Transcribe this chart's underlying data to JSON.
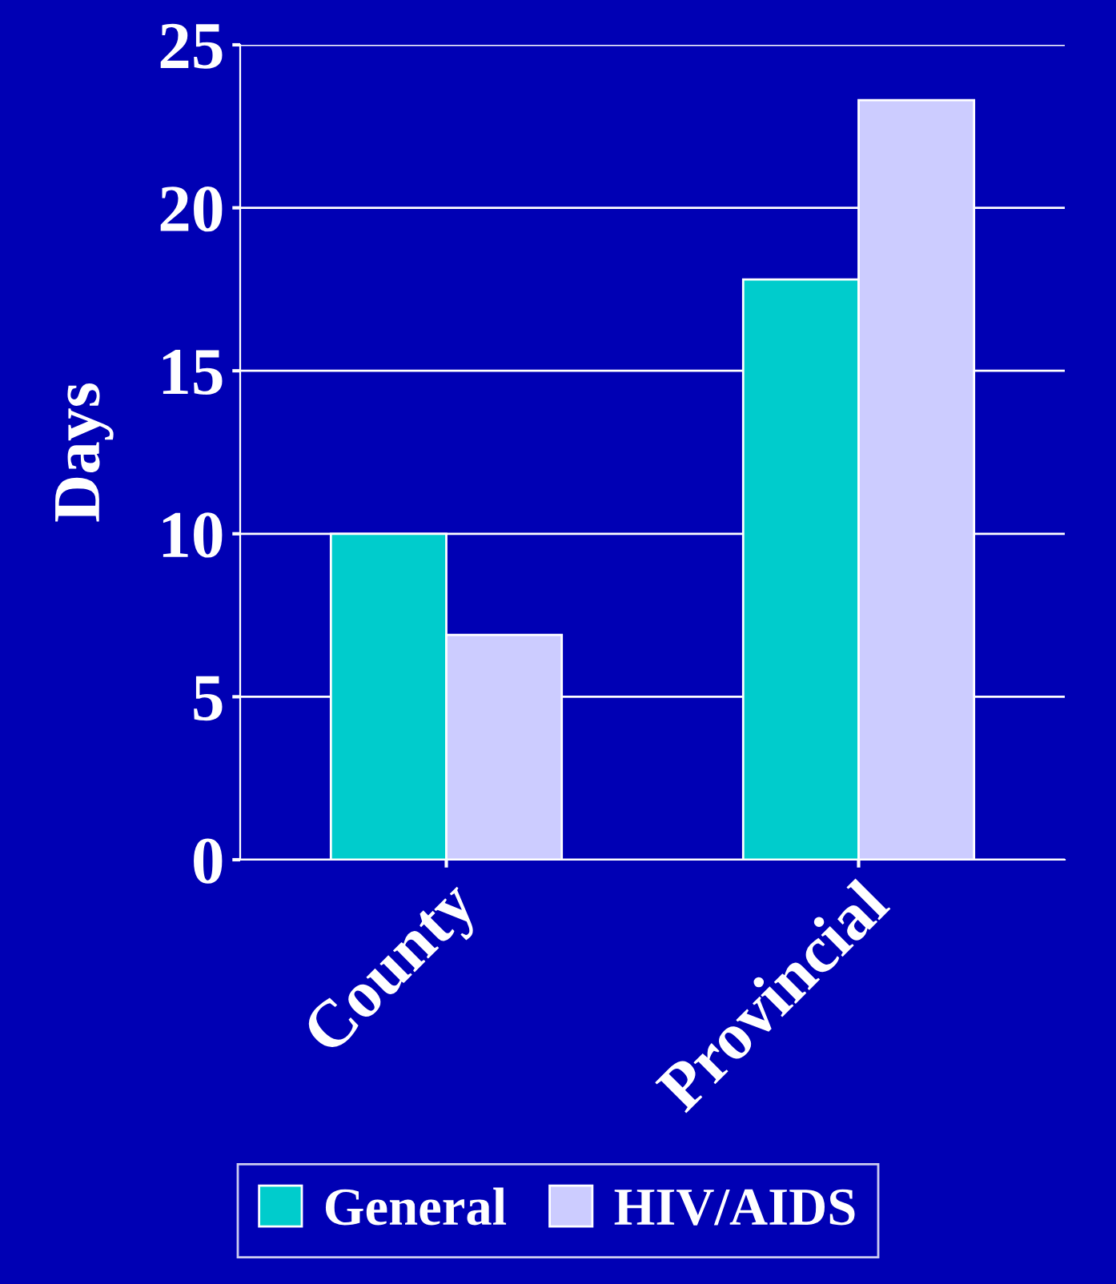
{
  "chart_data": {
    "type": "bar",
    "ylabel": "Days",
    "categories": [
      "County",
      "Provincial"
    ],
    "series": [
      {
        "name": "General",
        "color": "#00cccc",
        "values": [
          10,
          17.8
        ]
      },
      {
        "name": "HIV/AIDS",
        "color": "#ccccff",
        "values": [
          6.9,
          23.3
        ]
      }
    ],
    "ylim": [
      0,
      25
    ],
    "yticks": [
      0,
      5,
      10,
      15,
      20,
      25
    ],
    "grid": "y",
    "legend": "bottom"
  }
}
